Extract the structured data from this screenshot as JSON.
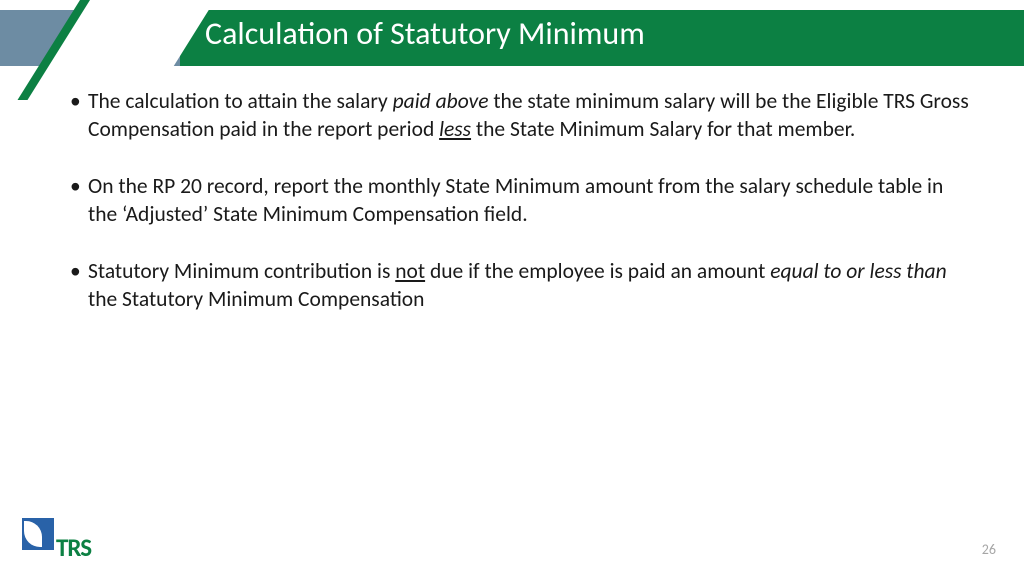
{
  "colors": {
    "header_green": "#0c8043",
    "header_blue": "#6d8ca3",
    "background": "#ffffff",
    "title_text": "#ffffff",
    "body_text": "#1a1a1a",
    "page_num": "#a6a6a6",
    "logo_blue": "#2962a8"
  },
  "typography": {
    "title_fontsize": 32,
    "title_weight": 300,
    "body_fontsize": 21.5,
    "body_lineheight": 1.28,
    "page_num_fontsize": 14,
    "logo_fontsize": 25
  },
  "title": "Calculation of Statutory Minimum",
  "bullets": [
    {
      "pre1": "The calculation to attain the salary ",
      "em1": "paid above",
      "mid1": " the state minimum salary will be the Eligible TRS Gross Compensation paid in the report period ",
      "em2": "less",
      "post1": " the State Minimum Salary for that member."
    },
    {
      "text": "On the RP 20 record, report the monthly State Minimum amount from the salary schedule table in the ‘Adjusted’ State Minimum Compensation field."
    },
    {
      "pre1": "Statutory Minimum contribution is ",
      "em1": "not",
      "mid1": " due if the employee is paid an amount ",
      "em2": "equal to or less than",
      "post1": " the Statutory Minimum Compensation"
    }
  ],
  "logo_text": "TRS",
  "page_number": "26"
}
